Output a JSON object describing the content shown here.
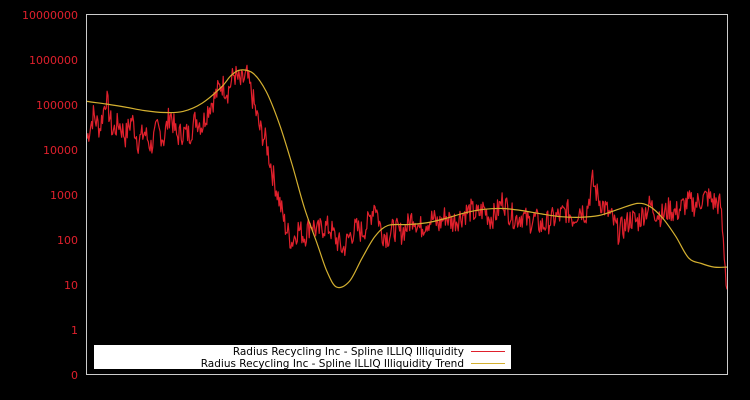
{
  "chart_data": {
    "type": "line",
    "title": "",
    "xlabel": "",
    "ylabel": "",
    "yscale": "log",
    "y_ticks": [
      "0",
      "1",
      "10",
      "100",
      "1000",
      "10000",
      "100000",
      "1000000",
      "10000000"
    ],
    "ylim": [
      0,
      10000000
    ],
    "grid": false,
    "legend_position": "lower-left inside",
    "background": "#000000",
    "axis_color": "#cccccc",
    "tick_label_color": "#e0202c",
    "series": [
      {
        "name": "Radius Recycling Inc - Spline ILLIQ Illiquidity",
        "color": "#e0202c",
        "x": [
          0.0,
          0.01,
          0.02,
          0.03,
          0.04,
          0.05,
          0.06,
          0.07,
          0.08,
          0.09,
          0.1,
          0.11,
          0.12,
          0.13,
          0.14,
          0.15,
          0.16,
          0.17,
          0.18,
          0.19,
          0.2,
          0.21,
          0.22,
          0.23,
          0.24,
          0.25,
          0.26,
          0.27,
          0.28,
          0.29,
          0.3,
          0.31,
          0.32,
          0.33,
          0.34,
          0.35,
          0.36,
          0.37,
          0.38,
          0.39,
          0.4,
          0.41,
          0.42,
          0.43,
          0.44,
          0.45,
          0.46,
          0.47,
          0.48,
          0.49,
          0.5,
          0.51,
          0.52,
          0.53,
          0.54,
          0.55,
          0.56,
          0.57,
          0.58,
          0.59,
          0.6,
          0.61,
          0.62,
          0.63,
          0.64,
          0.65,
          0.66,
          0.67,
          0.68,
          0.69,
          0.7,
          0.71,
          0.72,
          0.73,
          0.74,
          0.75,
          0.76,
          0.77,
          0.78,
          0.79,
          0.8,
          0.81,
          0.82,
          0.83,
          0.84,
          0.85,
          0.86,
          0.87,
          0.88,
          0.89,
          0.9,
          0.91,
          0.92,
          0.93,
          0.94,
          0.95,
          0.96,
          0.97,
          0.98,
          0.99,
          1.0
        ],
        "values": [
          180000,
          600000,
          300000,
          1500000,
          250000,
          400000,
          200000,
          500000,
          150000,
          250000,
          120000,
          300000,
          180000,
          700000,
          200000,
          250000,
          220000,
          500000,
          350000,
          900000,
          1500000,
          3000000,
          2000000,
          5000000,
          3000000,
          4500000,
          1200000,
          300000,
          150000,
          30000,
          8000,
          2000,
          900,
          1800,
          1200,
          2500,
          1500,
          2000,
          1800,
          1000,
          600,
          1200,
          1800,
          1500,
          2500,
          7000,
          1500,
          1200,
          1800,
          1400,
          2000,
          3500,
          1800,
          2500,
          3000,
          2200,
          3500,
          2500,
          3000,
          4000,
          4500,
          3500,
          5000,
          3000,
          4000,
          8000,
          4000,
          3000,
          3500,
          2500,
          3000,
          2000,
          2500,
          3000,
          3500,
          4500,
          3000,
          5000,
          4000,
          20000,
          8000,
          5000,
          3000,
          1500,
          2000,
          3000,
          2500,
          4000,
          6000,
          4000,
          3500,
          5000,
          4000,
          5500,
          7000,
          6000,
          8000,
          9000,
          7000,
          6000,
          80
        ]
      },
      {
        "name": "Radius Recycling Inc - Spline ILLIQ Illiquidity Trend",
        "color": "#d4b030",
        "x": [
          0.0,
          0.03,
          0.06,
          0.09,
          0.12,
          0.15,
          0.18,
          0.21,
          0.225,
          0.24,
          0.26,
          0.28,
          0.3,
          0.32,
          0.34,
          0.36,
          0.375,
          0.39,
          0.41,
          0.43,
          0.45,
          0.47,
          0.5,
          0.53,
          0.56,
          0.59,
          0.62,
          0.65,
          0.68,
          0.71,
          0.74,
          0.77,
          0.8,
          0.83,
          0.86,
          0.88,
          0.9,
          0.92,
          0.94,
          0.96,
          0.98,
          1.0
        ],
        "values": [
          1200000,
          1050000,
          900000,
          750000,
          680000,
          720000,
          1100000,
          2500000,
          4500000,
          6000000,
          5000000,
          2000000,
          400000,
          50000,
          5000,
          800,
          200,
          90,
          120,
          400,
          1200,
          2100,
          2200,
          2400,
          3000,
          4000,
          4800,
          5000,
          4500,
          3800,
          3300,
          3200,
          3500,
          4800,
          6500,
          5500,
          3000,
          1200,
          400,
          300,
          250,
          250
        ]
      }
    ]
  },
  "legend": {
    "items": [
      {
        "label": "Radius Recycling Inc - Spline ILLIQ Illiquidity",
        "color": "#e0202c"
      },
      {
        "label": "Radius Recycling Inc - Spline ILLIQ Illiquidity Trend",
        "color": "#d4b030"
      }
    ]
  }
}
